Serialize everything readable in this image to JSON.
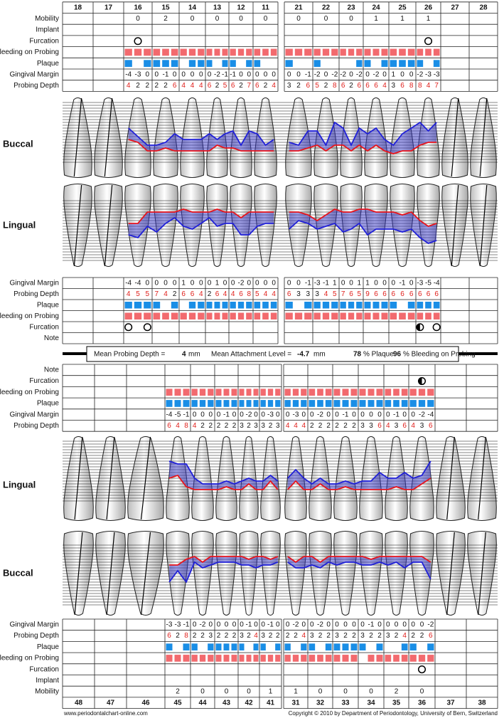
{
  "upper": {
    "teeth": [
      18,
      17,
      16,
      15,
      14,
      13,
      12,
      11,
      21,
      22,
      23,
      24,
      25,
      26,
      27,
      28
    ],
    "buccal_label": "Buccal",
    "lingual_label": "Lingual",
    "buccal_table": [
      {
        "label": "Mobility",
        "mobility": [
          null,
          null,
          0,
          2,
          0,
          0,
          0,
          0,
          0,
          0,
          0,
          1,
          1,
          1,
          null,
          null
        ]
      },
      {
        "label": "Implant"
      },
      {
        "label": "Furcation",
        "furcation": [
          null,
          null,
          [
            "open"
          ],
          null,
          null,
          null,
          null,
          null,
          null,
          null,
          null,
          null,
          null,
          [
            "open"
          ],
          null,
          null
        ]
      },
      {
        "label": "Bleeding on Probing",
        "bleeding": [
          null,
          null,
          [
            1,
            1,
            1
          ],
          [
            1,
            1,
            1
          ],
          [
            1,
            1,
            1
          ],
          [
            1,
            1,
            1
          ],
          [
            1,
            1,
            1
          ],
          [
            1,
            1,
            1
          ],
          [
            1,
            1,
            1
          ],
          [
            1,
            1,
            1
          ],
          [
            1,
            1,
            1
          ],
          [
            1,
            1,
            1
          ],
          [
            1,
            1,
            1
          ],
          [
            1,
            1,
            1
          ],
          null,
          null
        ]
      },
      {
        "label": "Plaque",
        "plaque": [
          null,
          null,
          [
            1,
            0,
            1
          ],
          [
            1,
            1,
            1
          ],
          [
            0,
            1,
            1
          ],
          [
            1,
            0,
            1
          ],
          [
            1,
            0,
            1
          ],
          [
            1,
            0,
            0
          ],
          [
            1,
            0,
            0
          ],
          [
            1,
            0,
            0
          ],
          [
            0,
            0,
            1
          ],
          [
            1,
            0,
            1
          ],
          [
            1,
            1,
            1
          ],
          [
            1,
            0,
            1
          ],
          null,
          null
        ]
      },
      {
        "label": "Gingival Margin",
        "gingival_margin": [
          null,
          null,
          [
            -4,
            -3,
            0
          ],
          [
            0,
            -1,
            0
          ],
          [
            0,
            0,
            0
          ],
          [
            0,
            -2,
            -1
          ],
          [
            -1,
            0,
            0
          ],
          [
            0,
            0,
            0
          ],
          [
            0,
            0,
            -1
          ],
          [
            -2,
            0,
            -2
          ],
          [
            -2,
            0,
            -2
          ],
          [
            0,
            -2,
            0
          ],
          [
            1,
            0,
            0
          ],
          [
            -2,
            -3,
            -3
          ],
          null,
          null
        ]
      },
      {
        "label": "Probing Depth",
        "probing_depth": [
          null,
          null,
          [
            4,
            2,
            2
          ],
          [
            2,
            2,
            6
          ],
          [
            4,
            4,
            4
          ],
          [
            6,
            2,
            5
          ],
          [
            6,
            2,
            7
          ],
          [
            6,
            2,
            4
          ],
          [
            3,
            2,
            6
          ],
          [
            5,
            2,
            8
          ],
          [
            6,
            2,
            6
          ],
          [
            6,
            6,
            4
          ],
          [
            3,
            6,
            8
          ],
          [
            8,
            4,
            7
          ],
          null,
          null
        ]
      }
    ],
    "lingual_table": [
      {
        "label": "Gingival Margin",
        "gingival_margin": [
          null,
          null,
          [
            -4,
            -4,
            0
          ],
          [
            0,
            0,
            0
          ],
          [
            1,
            0,
            0
          ],
          [
            0,
            1,
            0
          ],
          [
            0,
            -2,
            0
          ],
          [
            0,
            0,
            0
          ],
          [
            0,
            0,
            -1
          ],
          [
            -3,
            -1,
            1
          ],
          [
            0,
            0,
            1
          ],
          [
            1,
            0,
            0
          ],
          [
            0,
            -1,
            0
          ],
          [
            -3,
            -5,
            -4
          ],
          null,
          null
        ]
      },
      {
        "label": "Probing Depth",
        "probing_depth": [
          null,
          null,
          [
            4,
            5,
            5
          ],
          [
            7,
            4,
            2
          ],
          [
            6,
            6,
            4
          ],
          [
            2,
            6,
            4
          ],
          [
            4,
            6,
            8
          ],
          [
            5,
            4,
            4
          ],
          [
            6,
            3,
            3
          ],
          [
            3,
            4,
            5
          ],
          [
            7,
            6,
            5
          ],
          [
            9,
            6,
            6
          ],
          [
            6,
            6,
            6
          ],
          [
            6,
            6,
            6
          ],
          null,
          null
        ]
      },
      {
        "label": "Plaque",
        "plaque": [
          null,
          null,
          [
            1,
            1,
            1
          ],
          [
            1,
            0,
            1
          ],
          [
            0,
            1,
            1
          ],
          [
            1,
            1,
            1
          ],
          [
            1,
            1,
            1
          ],
          [
            1,
            1,
            1
          ],
          [
            1,
            0,
            1
          ],
          [
            1,
            1,
            1
          ],
          [
            1,
            1,
            1
          ],
          [
            1,
            1,
            1
          ],
          [
            1,
            0,
            1
          ],
          [
            1,
            1,
            1
          ],
          null,
          null
        ]
      },
      {
        "label": "Bleeding on Probing",
        "bleeding": [
          null,
          null,
          [
            1,
            1,
            1
          ],
          [
            1,
            1,
            1
          ],
          [
            1,
            1,
            1
          ],
          [
            1,
            1,
            1
          ],
          [
            1,
            1,
            1
          ],
          [
            1,
            1,
            1
          ],
          [
            1,
            1,
            1
          ],
          [
            1,
            1,
            1
          ],
          [
            1,
            1,
            1
          ],
          [
            1,
            1,
            1
          ],
          [
            1,
            1,
            1
          ],
          [
            1,
            1,
            1
          ],
          null,
          null
        ]
      },
      {
        "label": "Furcation",
        "furcation": [
          null,
          null,
          [
            "open",
            "open"
          ],
          null,
          null,
          null,
          null,
          null,
          null,
          null,
          null,
          null,
          null,
          [
            "half",
            "open"
          ],
          null,
          null
        ]
      },
      {
        "label": "Note"
      }
    ]
  },
  "summary": {
    "probing_depth_label": "Mean Probing Depth =",
    "probing_depth": "4",
    "probing_depth_unit": "mm",
    "attachment_label": "Mean Attachment Level =",
    "attachment": "-4.7",
    "attachment_unit": "mm",
    "plaque": "78",
    "plaque_label": "% Plaque",
    "bleeding": "96",
    "bleeding_label": "% Bleeding on Probing"
  },
  "lower": {
    "teeth": [
      48,
      47,
      46,
      45,
      44,
      43,
      42,
      41,
      31,
      32,
      33,
      34,
      35,
      36,
      37,
      38
    ],
    "lingual_label": "Lingual",
    "buccal_label": "Buccal",
    "lingual_table": [
      {
        "label": "Note"
      },
      {
        "label": "Furcation",
        "furcation": [
          null,
          null,
          null,
          null,
          null,
          null,
          null,
          null,
          null,
          null,
          null,
          null,
          null,
          [
            "half"
          ],
          null,
          null
        ]
      },
      {
        "label": "Bleeding on Probing",
        "bleeding": [
          null,
          null,
          null,
          [
            1,
            1,
            1
          ],
          [
            1,
            1,
            1
          ],
          [
            1,
            1,
            1
          ],
          [
            1,
            1,
            1
          ],
          [
            1,
            1,
            1
          ],
          [
            1,
            1,
            1
          ],
          [
            1,
            1,
            1
          ],
          [
            1,
            1,
            1
          ],
          [
            1,
            1,
            1
          ],
          [
            1,
            1,
            1
          ],
          [
            1,
            1,
            1
          ],
          null,
          null
        ]
      },
      {
        "label": "Plaque",
        "plaque": [
          null,
          null,
          null,
          [
            1,
            1,
            1
          ],
          [
            1,
            1,
            1
          ],
          [
            1,
            1,
            1
          ],
          [
            1,
            1,
            1
          ],
          [
            1,
            1,
            1
          ],
          [
            1,
            1,
            1
          ],
          [
            1,
            1,
            1
          ],
          [
            1,
            1,
            1
          ],
          [
            1,
            1,
            1
          ],
          [
            1,
            1,
            1
          ],
          [
            1,
            1,
            1
          ],
          null,
          null
        ]
      },
      {
        "label": "Gingival Margin",
        "gingival_margin": [
          null,
          null,
          null,
          [
            -4,
            -5,
            -1
          ],
          [
            0,
            0,
            0
          ],
          [
            0,
            -1,
            0
          ],
          [
            0,
            -2,
            0
          ],
          [
            0,
            -3,
            0
          ],
          [
            0,
            -3,
            0
          ],
          [
            0,
            -2,
            0
          ],
          [
            0,
            -1,
            0
          ],
          [
            0,
            0,
            0
          ],
          [
            0,
            -1,
            0
          ],
          [
            0,
            -2,
            -4
          ],
          null,
          null
        ]
      },
      {
        "label": "Probing Depth",
        "probing_depth": [
          null,
          null,
          null,
          [
            6,
            4,
            8
          ],
          [
            4,
            2,
            2
          ],
          [
            2,
            2,
            2
          ],
          [
            3,
            2,
            3
          ],
          [
            3,
            2,
            3
          ],
          [
            4,
            4,
            4
          ],
          [
            2,
            2,
            2
          ],
          [
            2,
            2,
            2
          ],
          [
            3,
            3,
            6
          ],
          [
            4,
            3,
            6
          ],
          [
            4,
            3,
            6
          ],
          null,
          null
        ]
      }
    ],
    "buccal_table": [
      {
        "label": "Gingival Margin",
        "gingival_margin": [
          null,
          null,
          null,
          [
            -3,
            -3,
            -1
          ],
          [
            0,
            -2,
            0
          ],
          [
            0,
            0,
            0
          ],
          [
            0,
            -1,
            0
          ],
          [
            0,
            -1,
            0
          ],
          [
            0,
            -2,
            0
          ],
          [
            0,
            -2,
            0
          ],
          [
            0,
            0,
            0
          ],
          [
            0,
            -1,
            0
          ],
          [
            0,
            0,
            0
          ],
          [
            0,
            0,
            -2
          ],
          null,
          null
        ]
      },
      {
        "label": "Probing Depth",
        "probing_depth": [
          null,
          null,
          null,
          [
            6,
            2,
            8
          ],
          [
            2,
            2,
            3
          ],
          [
            2,
            2,
            2
          ],
          [
            3,
            2,
            4
          ],
          [
            3,
            2,
            2
          ],
          [
            2,
            2,
            4
          ],
          [
            3,
            2,
            2
          ],
          [
            3,
            2,
            2
          ],
          [
            3,
            2,
            2
          ],
          [
            3,
            2,
            4
          ],
          [
            2,
            2,
            6
          ],
          null,
          null
        ]
      },
      {
        "label": "Plaque",
        "plaque": [
          null,
          null,
          null,
          [
            1,
            0,
            1
          ],
          [
            1,
            0,
            1
          ],
          [
            1,
            1,
            1
          ],
          [
            1,
            0,
            1
          ],
          [
            1,
            0,
            1
          ],
          [
            1,
            0,
            1
          ],
          [
            1,
            0,
            1
          ],
          [
            1,
            1,
            1
          ],
          [
            1,
            0,
            1
          ],
          [
            0,
            0,
            1
          ],
          [
            1,
            0,
            1
          ],
          null,
          null
        ]
      },
      {
        "label": "Bleeding on Probing",
        "bleeding": [
          null,
          null,
          null,
          [
            1,
            1,
            1
          ],
          [
            1,
            1,
            1
          ],
          [
            1,
            1,
            1
          ],
          [
            1,
            1,
            1
          ],
          [
            1,
            1,
            1
          ],
          [
            1,
            1,
            1
          ],
          [
            1,
            1,
            1
          ],
          [
            1,
            1,
            1
          ],
          [
            0,
            1,
            1
          ],
          [
            1,
            1,
            1
          ],
          [
            1,
            1,
            1
          ],
          null,
          null
        ]
      },
      {
        "label": "Furcation",
        "furcation": [
          null,
          null,
          null,
          null,
          null,
          null,
          null,
          null,
          null,
          null,
          null,
          null,
          null,
          [
            "open"
          ],
          null,
          null
        ]
      },
      {
        "label": "Implant"
      },
      {
        "label": "Mobility",
        "mobility": [
          null,
          null,
          null,
          2,
          0,
          0,
          0,
          1,
          1,
          0,
          0,
          0,
          2,
          0,
          null,
          null
        ]
      }
    ]
  },
  "colors": {
    "bleeding": "#f26a6e",
    "plaque": "#1a8ee6",
    "probing_depth_high": "#e0201c",
    "gingival_line": "#e8141c",
    "attachment_line": "#2020d8",
    "pocket_fill": "#3b3bc8"
  },
  "footer": {
    "left": "www.periodontalchart-online.com",
    "right": "Copyright © 2010 by Department of Periodontology, University of Bern, Switzerland"
  }
}
